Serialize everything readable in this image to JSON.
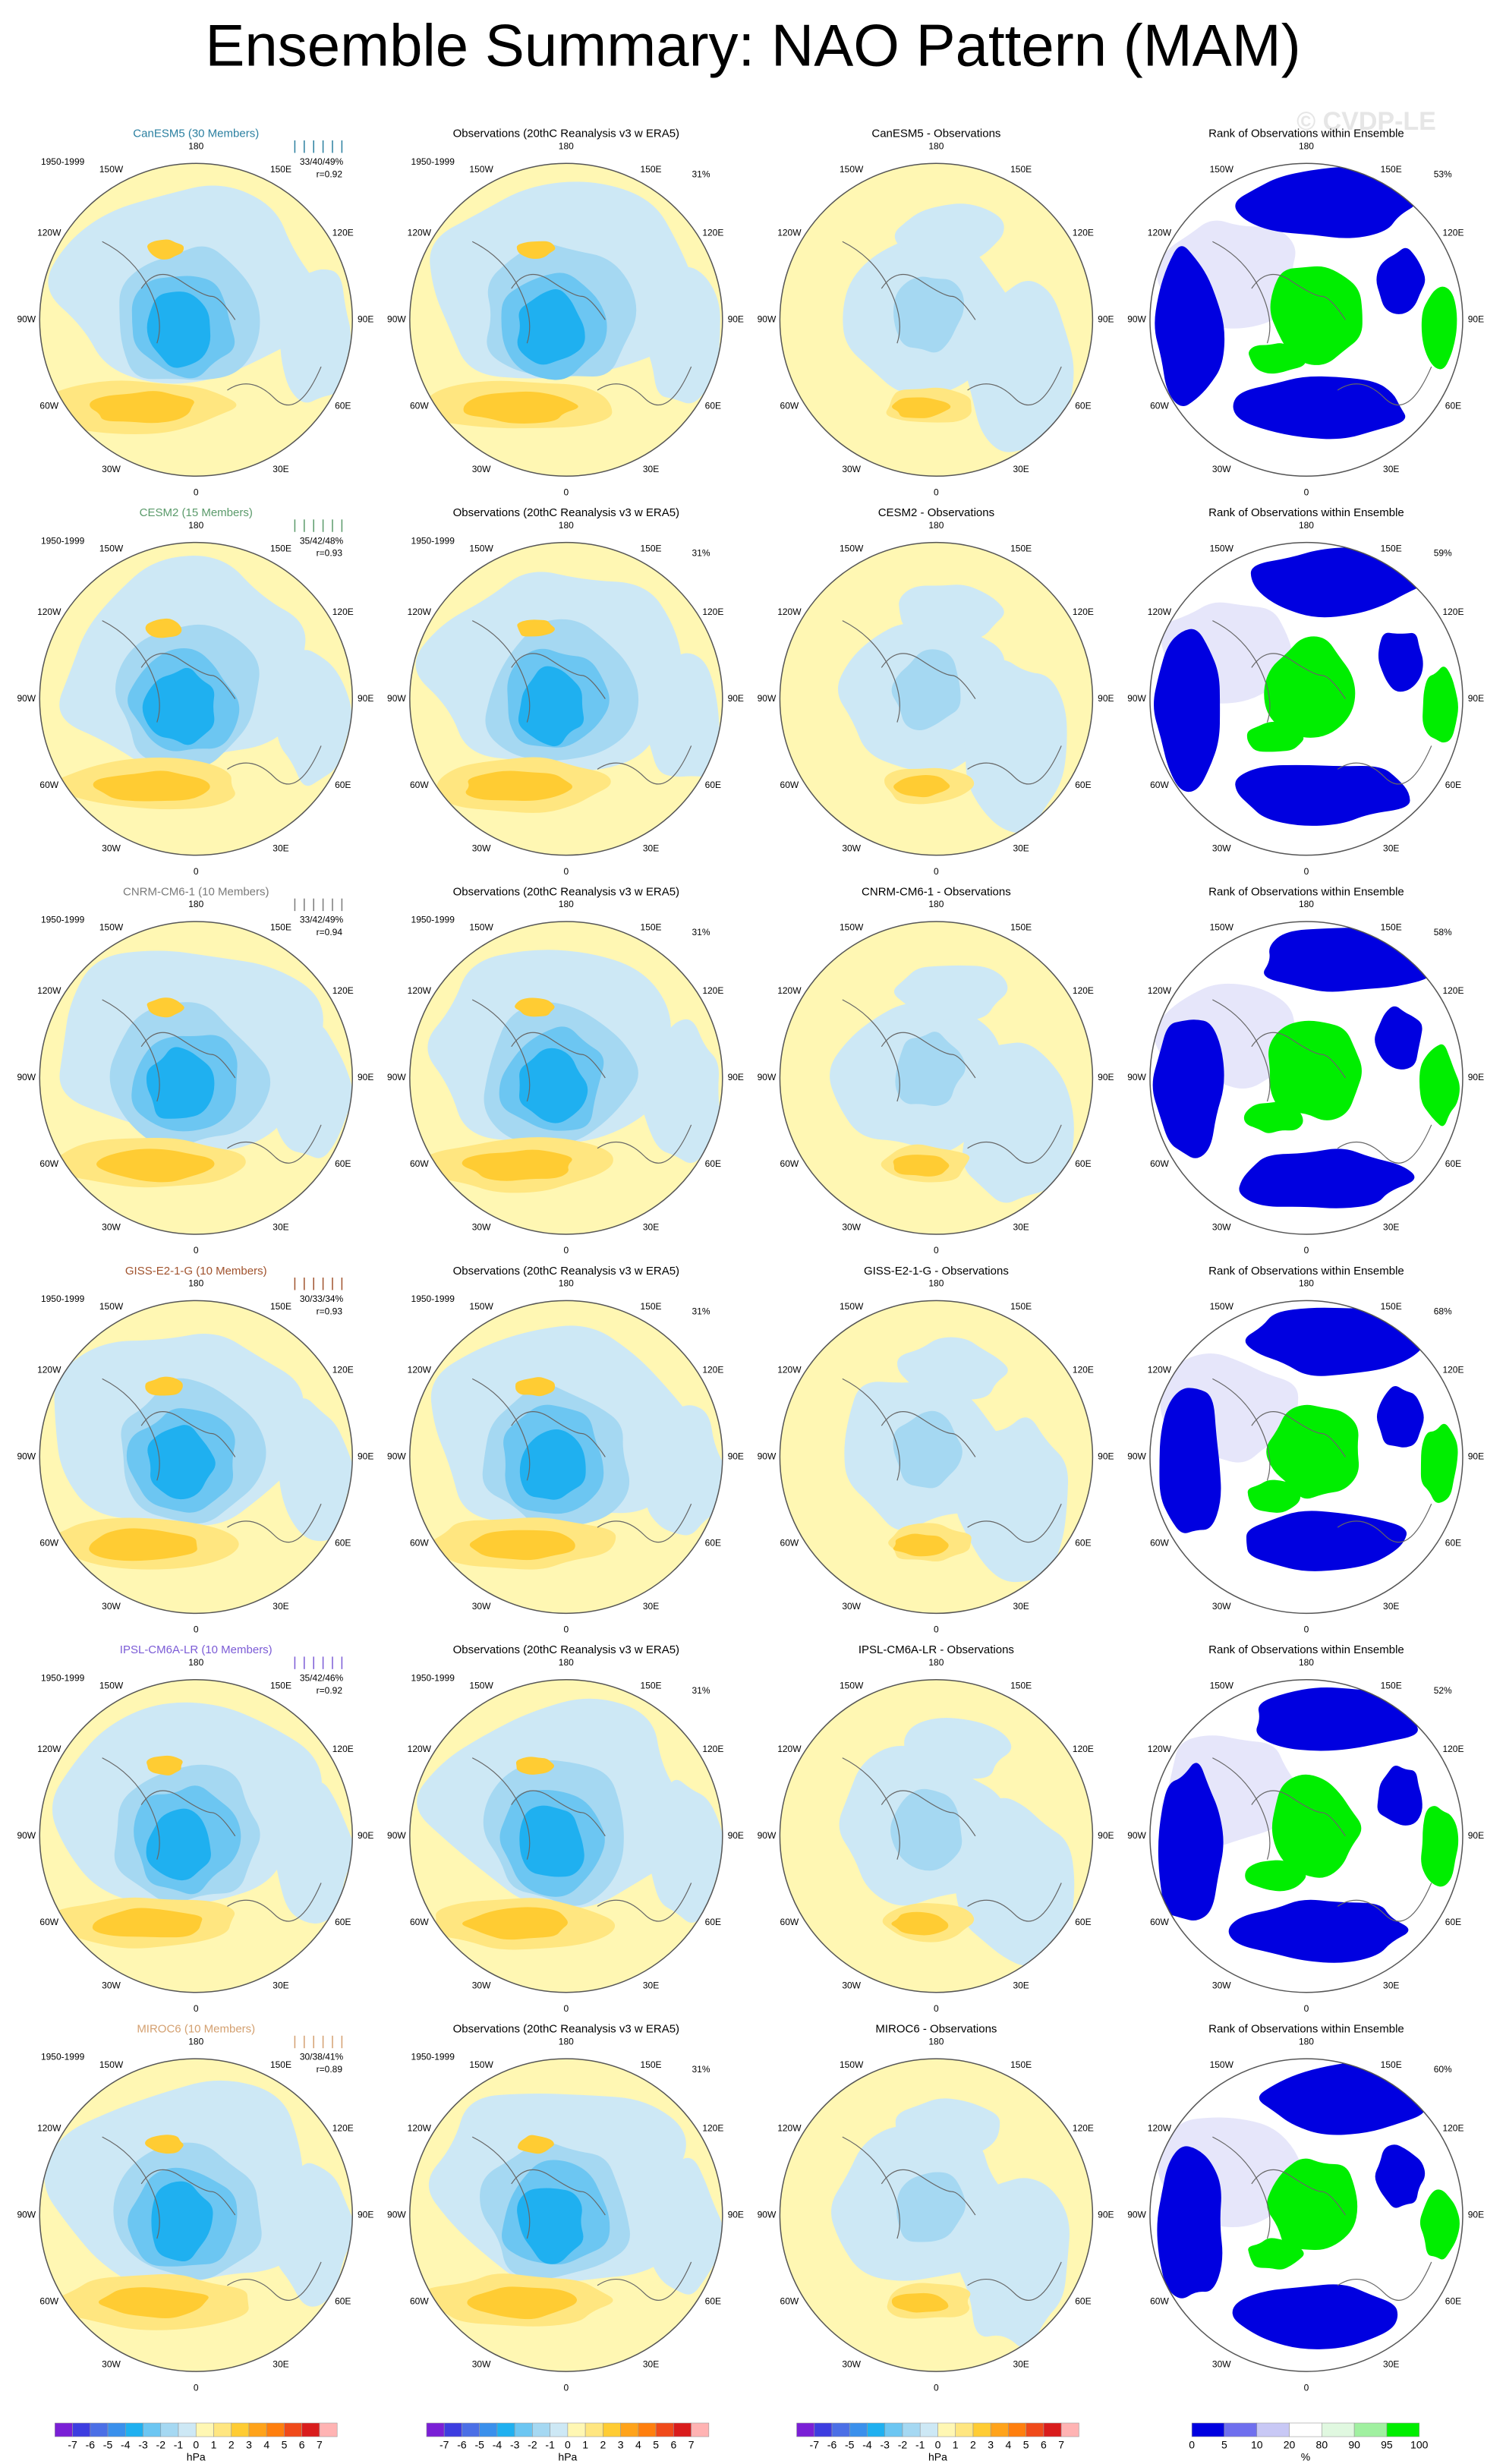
{
  "title": "Ensemble Summary: NAO Pattern (MAM)",
  "watermark": "© CVDP-LE",
  "period": "1950-1999",
  "obs_title": "Observations (20thC Reanalysis v3 w ERA5)",
  "rank_title": "Rank of Observations within Ensemble",
  "map_labels": [
    "180",
    "150E",
    "120E",
    "90E",
    "60E",
    "30E",
    "0",
    "30W",
    "60W",
    "90W",
    "120W",
    "150W"
  ],
  "rows": [
    {
      "model": "CanESM5 (30 Members)",
      "model_color": "#2a7fa0",
      "stats": "33/40/49%",
      "r": "r=0.92",
      "obs_pct": "31%",
      "diff_title": "CanESM5 - Observations",
      "rank_pct": "53%"
    },
    {
      "model": "CESM2 (15 Members)",
      "model_color": "#5a9a6a",
      "stats": "35/42/48%",
      "r": "r=0.93",
      "obs_pct": "31%",
      "diff_title": "CESM2 - Observations",
      "rank_pct": "59%"
    },
    {
      "model": "CNRM-CM6-1 (10 Members)",
      "model_color": "#7a7a7a",
      "stats": "33/42/49%",
      "r": "r=0.94",
      "obs_pct": "31%",
      "diff_title": "CNRM-CM6-1 - Observations",
      "rank_pct": "58%"
    },
    {
      "model": "GISS-E2-1-G (10 Members)",
      "model_color": "#a0522d",
      "stats": "30/33/34%",
      "r": "r=0.93",
      "obs_pct": "31%",
      "diff_title": "GISS-E2-1-G - Observations",
      "rank_pct": "68%"
    },
    {
      "model": "IPSL-CM6A-LR (10 Members)",
      "model_color": "#7b5bd6",
      "stats": "35/42/46%",
      "r": "r=0.92",
      "obs_pct": "31%",
      "diff_title": "IPSL-CM6A-LR - Observations",
      "rank_pct": "52%"
    },
    {
      "model": "MIROC6 (10 Members)",
      "model_color": "#d4a070",
      "stats": "30/38/41%",
      "r": "r=0.89",
      "obs_pct": "31%",
      "diff_title": "MIROC6 - Observations",
      "rank_pct": "60%"
    }
  ],
  "field_colorbar": {
    "colors": [
      "#7a1fd6",
      "#3d3de0",
      "#4b6fe6",
      "#3a90ec",
      "#1fb0f0",
      "#6cc6f2",
      "#a5d8f2",
      "#cde8f5",
      "#fff7b3",
      "#ffe680",
      "#ffcc33",
      "#ffa31a",
      "#ff7f0e",
      "#f04a1a",
      "#d91c1c",
      "#ffb3b3"
    ],
    "labels": [
      "-7",
      "-6",
      "-5",
      "-4",
      "-3",
      "-2",
      "-1",
      "0",
      "1",
      "2",
      "3",
      "4",
      "5",
      "6",
      "7"
    ],
    "unit": "hPa"
  },
  "rank_colorbar": {
    "colors": [
      "#0000e0",
      "#6f6fee",
      "#c8c8f5",
      "#ffffff",
      "#e0f8e0",
      "#a0f0a0",
      "#00ee00"
    ],
    "labels": [
      "0",
      "5",
      "10",
      "20",
      "80",
      "90",
      "95",
      "100"
    ],
    "unit": "%"
  }
}
